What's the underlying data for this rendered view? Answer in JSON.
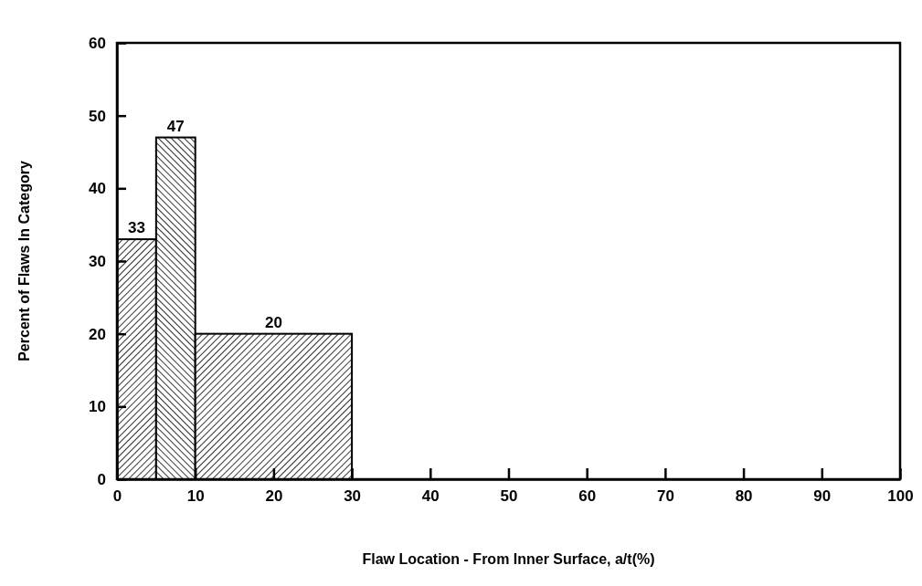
{
  "chart_data": {
    "type": "histogram",
    "xlabel": "Flaw Location - From Inner Surface, a/t(%)",
    "ylabel": "Percent of Flaws In Category",
    "bins": [
      0,
      5,
      10,
      30
    ],
    "values": [
      33,
      47,
      20
    ],
    "color": "#000000",
    "xlim": [
      0,
      100
    ],
    "xticks": [
      0,
      10,
      20,
      30,
      40,
      50,
      60,
      70,
      80,
      90,
      100
    ],
    "ylim": [
      0,
      60
    ],
    "yticks": [
      0,
      10,
      20,
      30,
      40,
      50,
      60
    ],
    "data_labels": true,
    "grid": false
  }
}
